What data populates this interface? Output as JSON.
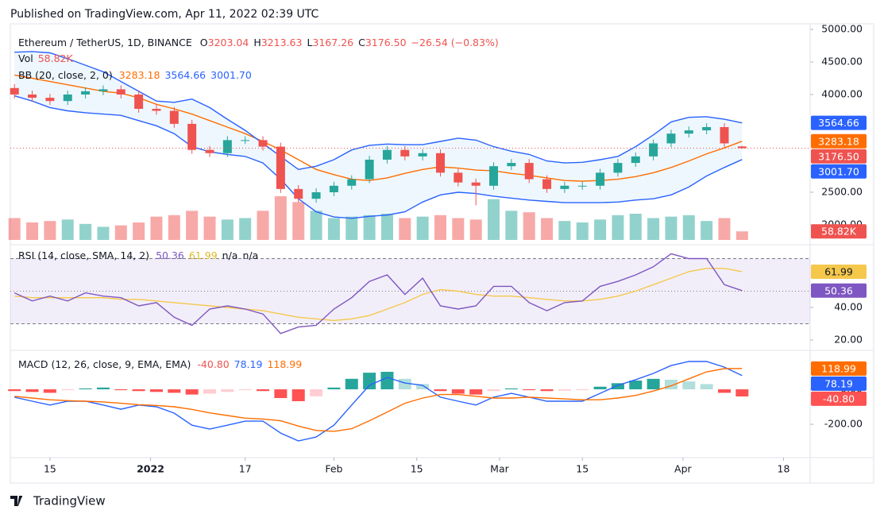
{
  "header": {
    "published": "Published on TradingView.com, Apr 11, 2022 02:39 UTC"
  },
  "footer": {
    "brand": "TradingView"
  },
  "chart_data": [
    {
      "type": "candlestick",
      "title": "Ethereum / TetherUS, 1D, BINANCE",
      "ohlc_prefixes": [
        "O",
        "H",
        "L",
        "C"
      ],
      "change": "−26.54 (−0.83%)",
      "x": [
        -6,
        -3,
        0,
        3,
        6,
        9,
        12,
        15,
        18,
        21,
        24,
        27,
        30,
        33,
        36,
        39,
        42,
        45,
        48,
        51,
        54,
        57,
        60,
        63,
        66,
        69,
        72,
        75,
        78,
        81,
        84,
        87,
        90,
        93,
        96,
        99,
        102,
        105,
        108,
        111,
        114,
        117
      ],
      "ylim": [
        1768,
        5085
      ],
      "yticks": [
        {
          "value": 5000,
          "label": "5000.00"
        },
        {
          "value": 4500,
          "label": "4500.00"
        },
        {
          "value": 4000,
          "label": "4000.00"
        },
        {
          "value": 2500,
          "label": "2500.00"
        },
        {
          "value": 2000,
          "label": "2000.00"
        }
      ],
      "candles": {
        "up_color": "#26a69a",
        "down_color": "#ef5350",
        "open": [
          4100,
          4000,
          3950,
          3900,
          4000,
          4050,
          4080,
          4000,
          3780,
          3750,
          3550,
          3150,
          3100,
          3300,
          3300,
          3200,
          2550,
          2400,
          2500,
          2600,
          2700,
          3000,
          3150,
          3050,
          3100,
          2800,
          2650,
          2600,
          2900,
          2950,
          2700,
          2550,
          2600,
          2600,
          2800,
          2950,
          3050,
          3250,
          3400,
          3450,
          3500,
          3203.04
        ],
        "high": [
          4160,
          4060,
          4010,
          4060,
          4110,
          4140,
          4140,
          4060,
          3840,
          3810,
          3610,
          3210,
          3360,
          3360,
          3360,
          3260,
          2610,
          2560,
          2660,
          2760,
          3060,
          3210,
          3210,
          3160,
          3160,
          2860,
          2710,
          2960,
          3010,
          3010,
          2760,
          2660,
          2660,
          2860,
          3010,
          3110,
          3310,
          3460,
          3510,
          3560,
          3560,
          3213.63
        ],
        "low": [
          3940,
          3890,
          3840,
          3840,
          3940,
          3990,
          3940,
          3720,
          3690,
          3490,
          3090,
          3040,
          3040,
          3240,
          3140,
          2490,
          2340,
          2340,
          2440,
          2540,
          2640,
          2940,
          2990,
          2990,
          2740,
          2590,
          2300,
          2540,
          2840,
          2640,
          2490,
          2490,
          2540,
          2540,
          2740,
          2890,
          2990,
          3190,
          3340,
          3390,
          3190,
          3167.26
        ],
        "close": [
          4000,
          3950,
          3900,
          4000,
          4050,
          4080,
          4000,
          3780,
          3750,
          3550,
          3150,
          3100,
          3300,
          3300,
          3200,
          2550,
          2400,
          2500,
          2600,
          2700,
          3000,
          3150,
          3050,
          3100,
          2800,
          2650,
          2600,
          2900,
          2950,
          2700,
          2550,
          2600,
          2600,
          2800,
          2950,
          3050,
          3250,
          3400,
          3450,
          3500,
          3250,
          3176.5
        ],
        "value_labels": [
          null,
          null,
          null,
          null,
          null,
          null,
          null,
          null,
          null,
          null,
          null,
          null,
          null,
          null,
          null,
          null,
          null,
          null,
          null,
          null,
          null,
          null,
          null,
          null,
          null,
          null,
          null,
          null,
          null,
          null,
          null,
          null,
          null,
          null,
          null,
          null,
          null,
          null,
          null,
          null,
          null,
          "3176.50"
        ]
      },
      "volume": {
        "name": "Vol",
        "values": [
          150,
          120,
          130,
          140,
          110,
          90,
          100,
          120,
          160,
          170,
          200,
          160,
          140,
          150,
          200,
          300,
          260,
          200,
          150,
          160,
          170,
          180,
          150,
          160,
          170,
          150,
          140,
          280,
          200,
          190,
          150,
          130,
          120,
          140,
          170,
          180,
          150,
          160,
          170,
          130,
          150,
          58.82
        ],
        "value_labels": [
          null,
          null,
          null,
          null,
          null,
          null,
          null,
          null,
          null,
          null,
          null,
          null,
          null,
          null,
          null,
          null,
          null,
          null,
          null,
          null,
          null,
          null,
          null,
          null,
          null,
          null,
          null,
          null,
          null,
          null,
          null,
          null,
          null,
          null,
          null,
          null,
          null,
          null,
          null,
          null,
          null,
          "58.82K"
        ]
      },
      "indicator": {
        "name": "BB (20, close, 2, 0)",
        "fill": "#2196f3",
        "series": [
          {
            "color": "#ff6d00",
            "values": [
              4300,
              4250,
              4200,
              4150,
              4100,
              4050,
              4020,
              3950,
              3850,
              3780,
              3700,
              3600,
              3500,
              3400,
              3280,
              3150,
              3000,
              2850,
              2770,
              2700,
              2680,
              2720,
              2790,
              2850,
              2890,
              2870,
              2840,
              2830,
              2790,
              2760,
              2720,
              2680,
              2670,
              2680,
              2700,
              2740,
              2800,
              2880,
              2980,
              3090,
              3180,
              3283.18
            ]
          },
          {
            "color": "#2962ff",
            "values": [
              4650,
              4660,
              4640,
              4550,
              4450,
              4350,
              4200,
              4050,
              3900,
              3880,
              3930,
              3800,
              3620,
              3450,
              3250,
              3050,
              2850,
              2900,
              3000,
              3150,
              3220,
              3240,
              3230,
              3230,
              3280,
              3330,
              3300,
              3200,
              3130,
              3080,
              2980,
              2950,
              2960,
              3000,
              3050,
              3200,
              3380,
              3580,
              3650,
              3660,
              3620,
              3564.66
            ]
          },
          {
            "color": "#2962ff",
            "values": [
              3980,
              3900,
              3800,
              3750,
              3720,
              3700,
              3680,
              3600,
              3520,
              3400,
              3200,
              3120,
              3080,
              3050,
              2950,
              2700,
              2400,
              2200,
              2120,
              2100,
              2130,
              2150,
              2200,
              2350,
              2460,
              2500,
              2480,
              2440,
              2410,
              2380,
              2360,
              2340,
              2340,
              2340,
              2350,
              2380,
              2400,
              2460,
              2580,
              2750,
              2880,
              3001.7
            ],
            "value_labels": [
              null,
              null,
              null,
              null,
              null,
              null,
              null,
              null,
              null,
              null,
              null,
              null,
              null,
              null,
              null,
              null,
              null,
              null,
              null,
              null,
              null,
              null,
              null,
              null,
              null,
              null,
              null,
              null,
              null,
              null,
              null,
              null,
              null,
              null,
              null,
              null,
              null,
              null,
              null,
              null,
              null,
              "3001.70"
            ]
          }
        ]
      }
    },
    {
      "type": "line",
      "title": "RSI (14, close, SMA, 14, 2)",
      "na_labels": [
        "n/a",
        "n/a"
      ],
      "x": [
        -6,
        -3,
        0,
        3,
        6,
        9,
        12,
        15,
        18,
        21,
        24,
        27,
        30,
        33,
        36,
        39,
        42,
        45,
        48,
        51,
        54,
        57,
        60,
        63,
        66,
        69,
        72,
        75,
        78,
        81,
        84,
        87,
        90,
        93,
        96,
        99,
        102,
        105,
        108,
        111,
        114,
        117
      ],
      "ylim": [
        15.6,
        76.6
      ],
      "yticks": [
        {
          "value": 40,
          "label": "40.00"
        },
        {
          "value": 20,
          "label": "20.00"
        }
      ],
      "levels": [
        70,
        50,
        30
      ],
      "band_color": "#7e57c2",
      "series": [
        {
          "color": "#7e57c2",
          "values": [
            49,
            44,
            47,
            44,
            49,
            47,
            46,
            41,
            43,
            34,
            29,
            39,
            41,
            39,
            36,
            24,
            28,
            29,
            39,
            46,
            56,
            60,
            48,
            58,
            41,
            39,
            41,
            53,
            53,
            43,
            38,
            43,
            44,
            53,
            56,
            60,
            65,
            73,
            70,
            70,
            54,
            50.36
          ]
        },
        {
          "color": "#f5c84c",
          "values": [
            47,
            46,
            46,
            46,
            46,
            46,
            45,
            45,
            44,
            43,
            42,
            41,
            40,
            39,
            38,
            36,
            34,
            33,
            32,
            33,
            35,
            39,
            43,
            48,
            51,
            50,
            48,
            47,
            47,
            46,
            45,
            44,
            44,
            45,
            47,
            50,
            54,
            58,
            62,
            64,
            64,
            61.99
          ]
        }
      ]
    },
    {
      "type": "macd",
      "title": "MACD (12, 26, close, 9, EMA, EMA)",
      "x": [
        -6,
        -3,
        0,
        3,
        6,
        9,
        12,
        15,
        18,
        21,
        24,
        27,
        30,
        33,
        36,
        39,
        42,
        45,
        48,
        51,
        54,
        57,
        60,
        63,
        66,
        69,
        72,
        75,
        78,
        81,
        84,
        87,
        90,
        93,
        96,
        99,
        102,
        105,
        108,
        111,
        114,
        117
      ],
      "xlim": [
        -6.7,
        128.5
      ],
      "xticks": [
        {
          "value": 0,
          "label": "15"
        },
        {
          "value": 17,
          "label": "2022"
        },
        {
          "value": 33,
          "label": "17"
        },
        {
          "value": 48,
          "label": "Feb"
        },
        {
          "value": 62,
          "label": "15"
        },
        {
          "value": 76,
          "label": "Mar"
        },
        {
          "value": 90,
          "label": "15"
        },
        {
          "value": 107,
          "label": "Apr"
        },
        {
          "value": 124,
          "label": "18"
        }
      ],
      "ylim": [
        -386,
        204.5
      ],
      "yticks": [
        {
          "value": 0,
          "label": "0.00"
        },
        {
          "value": -200,
          "label": "-200.00"
        }
      ],
      "histogram": {
        "colors": [
          "#26a69a",
          "#b2dfdb",
          "#ff5252",
          "#ffcdd2"
        ],
        "values": [
          -10,
          -15,
          -20,
          -5,
          5,
          10,
          -5,
          -10,
          -15,
          -20,
          -30,
          -25,
          -15,
          -5,
          -10,
          -50,
          -68,
          -40,
          10,
          60,
          95,
          100,
          60,
          30,
          -10,
          -25,
          -30,
          -10,
          5,
          -5,
          -10,
          -8,
          -5,
          15,
          35,
          50,
          60,
          55,
          45,
          30,
          -20,
          -40.8
        ],
        "value_labels": [
          null,
          null,
          null,
          null,
          null,
          null,
          null,
          null,
          null,
          null,
          null,
          null,
          null,
          null,
          null,
          null,
          null,
          null,
          null,
          null,
          null,
          null,
          null,
          null,
          null,
          null,
          null,
          null,
          null,
          null,
          null,
          null,
          null,
          null,
          null,
          null,
          null,
          null,
          null,
          null,
          null,
          "-40.80"
        ]
      },
      "series": [
        {
          "color": "#2962ff",
          "values": [
            -45,
            -68,
            -90,
            -68,
            -68,
            -90,
            -114,
            -90,
            -100,
            -136,
            -205,
            -227,
            -205,
            -182,
            -182,
            -250,
            -295,
            -273,
            -205,
            -90,
            23,
            68,
            36,
            23,
            -45,
            -68,
            -90,
            -45,
            -23,
            -45,
            -68,
            -68,
            -68,
            -23,
            23,
            55,
            91,
            136,
            159,
            159,
            127,
            78.19
          ]
        },
        {
          "color": "#ff6d00",
          "values": [
            -40,
            -50,
            -60,
            -65,
            -68,
            -72,
            -80,
            -88,
            -92,
            -100,
            -115,
            -135,
            -150,
            -165,
            -170,
            -180,
            -210,
            -235,
            -240,
            -225,
            -180,
            -130,
            -80,
            -50,
            -30,
            -30,
            -40,
            -50,
            -50,
            -45,
            -50,
            -55,
            -60,
            -60,
            -50,
            -35,
            -10,
            20,
            60,
            100,
            118,
            118.99
          ]
        }
      ]
    }
  ]
}
